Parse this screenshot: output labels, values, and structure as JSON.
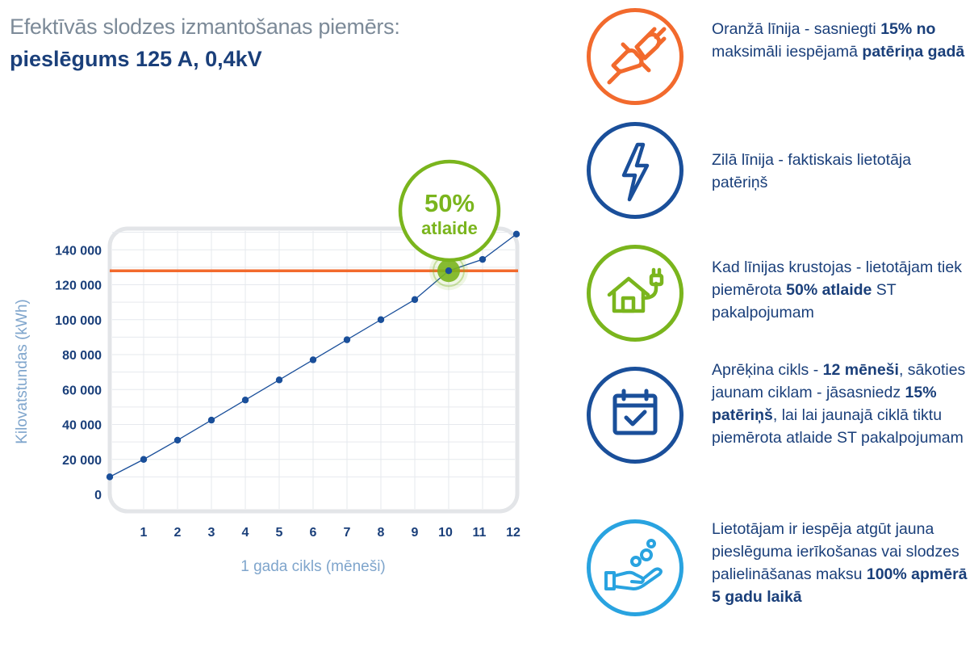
{
  "header": {
    "title_line1": "Efektīvās slodzes izmantošanas piemērs:",
    "title_line2": "pieslēgums 125 A, 0,4kV"
  },
  "chart_data": {
    "type": "line",
    "x": [
      0,
      1,
      2,
      3,
      4,
      5,
      6,
      7,
      8,
      9,
      10,
      11,
      12
    ],
    "y": [
      10000,
      20000,
      31000,
      42500,
      54000,
      65500,
      77000,
      88500,
      100000,
      111500,
      128000,
      134500,
      149000
    ],
    "x_tick_labels": [
      "1",
      "2",
      "3",
      "4",
      "5",
      "6",
      "7",
      "8",
      "9",
      "10",
      "11",
      "12"
    ],
    "y_tick_values": [
      0,
      20000,
      40000,
      60000,
      80000,
      100000,
      120000,
      140000
    ],
    "y_tick_labels": [
      "0",
      "20 000",
      "40 000",
      "60 000",
      "80 000",
      "100 000",
      "120 000",
      "140 000"
    ],
    "xlabel": "1 gada cikls (mēneši)",
    "ylabel": "Kilovatstundas (kWh)",
    "xlim": [
      0,
      12
    ],
    "ylim": [
      0,
      150000
    ],
    "threshold": {
      "value": 128000,
      "color": "#f26a2d"
    },
    "intersection": {
      "x": 10,
      "y": 128000,
      "callout_line1": "50%",
      "callout_line2": "atlaide",
      "color": "#7ab51d"
    },
    "series_color": "#1a4f9a",
    "grid": true
  },
  "info": [
    {
      "icon": "plug-icon",
      "color": "#f26a2d",
      "segments": [
        {
          "t": "Oranžā līnija - sasniegti ",
          "b": false
        },
        {
          "t": "15% no",
          "b": true
        },
        {
          "t": " maksimāli iespējamā ",
          "b": false
        },
        {
          "t": "patēriņa gadā",
          "b": true
        }
      ]
    },
    {
      "icon": "lightning-icon",
      "color": "#1a4f9a",
      "segments": [
        {
          "t": "Zilā līnija - faktiskais lietotāja patēriņš",
          "b": false
        }
      ]
    },
    {
      "icon": "house-plug-icon",
      "color": "#7ab51d",
      "segments": [
        {
          "t": "Kad līnijas krustojas - lietotājam tiek piemērota ",
          "b": false
        },
        {
          "t": "50% atlaide",
          "b": true
        },
        {
          "t": " ST pakalpojumam",
          "b": false
        }
      ]
    },
    {
      "icon": "calendar-check-icon",
      "color": "#1a4f9a",
      "segments": [
        {
          "t": "Aprēķina cikls - ",
          "b": false
        },
        {
          "t": "12 mēneši",
          "b": true
        },
        {
          "t": ", sākoties jaunam ciklam - jāsasniedz ",
          "b": false
        },
        {
          "t": "15% patēriņš",
          "b": true
        },
        {
          "t": ", lai lai jaunajā ciklā tiktu piemērota atlaide ST pakalpojumam",
          "b": false
        }
      ]
    },
    {
      "icon": "hand-coins-icon",
      "color": "#29a3e0",
      "segments": [
        {
          "t": "Lietotājam ir iespēja atgūt jauna pieslēguma ierīkošanas vai slodzes palielināšanas maksu ",
          "b": false
        },
        {
          "t": "100% apmērā 5 gadu laikā",
          "b": true
        }
      ]
    }
  ]
}
